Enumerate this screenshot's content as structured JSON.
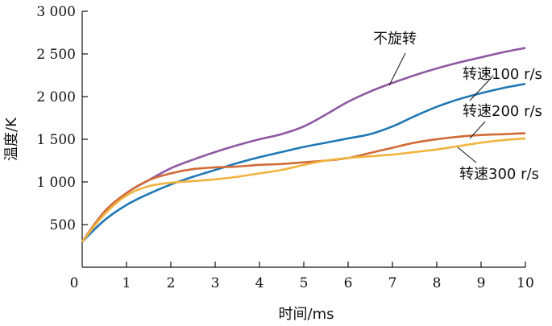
{
  "chart_data": {
    "type": "line",
    "xlabel": "时间/ms",
    "ylabel": "温度/K",
    "xlim": [
      0,
      10
    ],
    "ylim": [
      0,
      3000
    ],
    "x_ticks": [
      0,
      1,
      2,
      3,
      4,
      5,
      6,
      7,
      8,
      9,
      10
    ],
    "x_tick_labels": [
      "0",
      "1",
      "2",
      "3",
      "4",
      "5",
      "6",
      "7",
      "8",
      "9",
      "10"
    ],
    "y_ticks": [
      500,
      1000,
      1500,
      2000,
      2500,
      3000
    ],
    "y_tick_labels": [
      "500",
      "1 000",
      "1 500",
      "2 000",
      "2 500",
      "3 000"
    ],
    "grid": false,
    "series": [
      {
        "name": "不旋转",
        "color": "#8e59a1",
        "x": [
          0,
          0.5,
          1,
          1.5,
          2,
          2.5,
          3,
          3.5,
          4,
          4.5,
          5,
          5.5,
          6,
          6.5,
          7,
          7.5,
          8,
          8.5,
          9,
          9.5,
          10
        ],
        "y": [
          300,
          650,
          870,
          1020,
          1160,
          1260,
          1350,
          1430,
          1500,
          1560,
          1650,
          1790,
          1940,
          2060,
          2160,
          2250,
          2330,
          2400,
          2460,
          2520,
          2570
        ]
      },
      {
        "name": "转速100 r/s",
        "color": "#1f77b4",
        "x": [
          0,
          0.5,
          1,
          1.5,
          2,
          2.5,
          3,
          3.5,
          4,
          4.5,
          5,
          5.5,
          6,
          6.5,
          7,
          7.5,
          8,
          8.5,
          9,
          9.5,
          10
        ],
        "y": [
          300,
          550,
          730,
          860,
          970,
          1060,
          1140,
          1220,
          1290,
          1350,
          1410,
          1460,
          1510,
          1560,
          1650,
          1770,
          1880,
          1970,
          2040,
          2100,
          2150
        ]
      },
      {
        "name": "转速200 r/s",
        "color": "#d06a36",
        "x": [
          0,
          0.5,
          1,
          1.5,
          2,
          2.5,
          3,
          3.5,
          4,
          4.5,
          5,
          5.5,
          6,
          6.5,
          7,
          7.5,
          8,
          8.5,
          9,
          9.5,
          10
        ],
        "y": [
          300,
          650,
          870,
          1020,
          1100,
          1150,
          1170,
          1180,
          1200,
          1210,
          1230,
          1250,
          1280,
          1340,
          1400,
          1460,
          1500,
          1530,
          1550,
          1560,
          1570
        ]
      },
      {
        "name": "转速300 r/s",
        "color": "#f0b33f",
        "x": [
          0,
          0.5,
          1,
          1.5,
          2,
          2.5,
          3,
          3.5,
          4,
          4.5,
          5,
          5.5,
          6,
          6.5,
          7,
          7.5,
          8,
          8.5,
          9,
          9.5,
          10
        ],
        "y": [
          300,
          620,
          840,
          950,
          990,
          1010,
          1030,
          1060,
          1100,
          1140,
          1200,
          1250,
          1280,
          1300,
          1320,
          1350,
          1380,
          1420,
          1460,
          1490,
          1510
        ]
      }
    ]
  }
}
